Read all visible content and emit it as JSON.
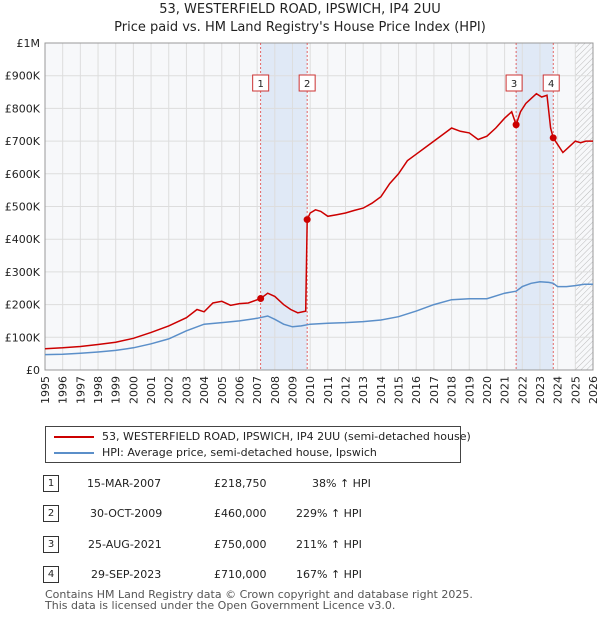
{
  "header": {
    "title": "53, WESTERFIELD ROAD, IPSWICH, IP4 2UU",
    "subtitle": "Price paid vs. HM Land Registry's House Price Index (HPI)"
  },
  "chart_data": {
    "type": "line",
    "title": "53, WESTERFIELD ROAD, IPSWICH, IP4 2UU",
    "subtitle": "Price paid vs. HM Land Registry's House Price Index (HPI)",
    "xlabel": "",
    "ylabel": "",
    "xlim": [
      1995,
      2026
    ],
    "ylim": [
      0,
      1000000
    ],
    "y_ticks": [
      {
        "value": 0,
        "label": "£0"
      },
      {
        "value": 100000,
        "label": "£100K"
      },
      {
        "value": 200000,
        "label": "£200K"
      },
      {
        "value": 300000,
        "label": "£300K"
      },
      {
        "value": 400000,
        "label": "£400K"
      },
      {
        "value": 500000,
        "label": "£500K"
      },
      {
        "value": 600000,
        "label": "£600K"
      },
      {
        "value": 700000,
        "label": "£700K"
      },
      {
        "value": 800000,
        "label": "£800K"
      },
      {
        "value": 900000,
        "label": "£900K"
      },
      {
        "value": 1000000,
        "label": "£1M"
      }
    ],
    "x_ticks": [
      "1995",
      "1996",
      "1997",
      "1998",
      "1999",
      "2000",
      "2001",
      "2002",
      "2003",
      "2004",
      "2005",
      "2006",
      "2007",
      "2008",
      "2009",
      "2010",
      "2011",
      "2012",
      "2013",
      "2014",
      "2015",
      "2016",
      "2017",
      "2018",
      "2019",
      "2020",
      "2021",
      "2022",
      "2023",
      "2024",
      "2025",
      "2026"
    ],
    "grid": true,
    "shaded_ranges": [
      [
        2007.2,
        2009.83
      ],
      [
        2021.65,
        2023.75
      ]
    ],
    "forecast_hatch_from": 2025.0,
    "series": [
      {
        "name": "53, WESTERFIELD ROAD, IPSWICH, IP4 2UU (semi-detached house)",
        "color": "#cc0000",
        "x": [
          1995.0,
          1996.0,
          1997.0,
          1998.0,
          1999.0,
          2000.0,
          2001.0,
          2002.0,
          2003.0,
          2003.6,
          2004.0,
          2004.5,
          2005.0,
          2005.5,
          2006.0,
          2006.5,
          2007.2,
          2007.6,
          2008.0,
          2008.5,
          2008.9,
          2009.3,
          2009.75,
          2009.83,
          2010.0,
          2010.3,
          2010.6,
          2011.0,
          2011.5,
          2012.0,
          2012.5,
          2013.0,
          2013.5,
          2014.0,
          2014.5,
          2015.0,
          2015.5,
          2016.0,
          2016.5,
          2017.0,
          2017.5,
          2018.0,
          2018.5,
          2019.0,
          2019.5,
          2020.0,
          2020.5,
          2021.0,
          2021.4,
          2021.65,
          2021.9,
          2022.2,
          2022.5,
          2022.8,
          2023.1,
          2023.4,
          2023.5,
          2023.6,
          2023.75,
          2024.0,
          2024.3,
          2024.6,
          2025.0,
          2025.3,
          2025.6,
          2026.0
        ],
        "values": [
          65000,
          68000,
          72000,
          78000,
          85000,
          97000,
          115000,
          135000,
          160000,
          185000,
          178000,
          205000,
          210000,
          198000,
          203000,
          205000,
          218750,
          235000,
          225000,
          200000,
          185000,
          175000,
          180000,
          460000,
          480000,
          490000,
          485000,
          470000,
          475000,
          480000,
          488000,
          495000,
          510000,
          530000,
          570000,
          600000,
          640000,
          660000,
          680000,
          700000,
          720000,
          740000,
          730000,
          725000,
          705000,
          715000,
          740000,
          770000,
          790000,
          750000,
          790000,
          815000,
          830000,
          845000,
          835000,
          840000,
          790000,
          740000,
          710000,
          690000,
          665000,
          680000,
          700000,
          695000,
          700000,
          700000
        ]
      },
      {
        "name": "HPI: Average price, semi-detached house, Ipswich",
        "color": "#5b8fc9",
        "x": [
          1995.0,
          1996.0,
          1997.0,
          1998.0,
          1999.0,
          2000.0,
          2001.0,
          2002.0,
          2003.0,
          2004.0,
          2005.0,
          2006.0,
          2007.0,
          2007.6,
          2008.0,
          2008.5,
          2009.0,
          2009.5,
          2010.0,
          2011.0,
          2012.0,
          2013.0,
          2014.0,
          2015.0,
          2016.0,
          2017.0,
          2018.0,
          2019.0,
          2020.0,
          2021.0,
          2021.65,
          2022.0,
          2022.5,
          2023.0,
          2023.5,
          2023.75,
          2024.0,
          2024.5,
          2025.0,
          2025.5,
          2026.0
        ],
        "values": [
          47000,
          48000,
          51000,
          55000,
          60000,
          68000,
          80000,
          95000,
          120000,
          140000,
          145000,
          150000,
          158000,
          165000,
          155000,
          140000,
          132000,
          135000,
          140000,
          143000,
          145000,
          148000,
          153000,
          163000,
          180000,
          200000,
          215000,
          218000,
          218000,
          235000,
          241000,
          255000,
          265000,
          270000,
          268000,
          265000,
          255000,
          255000,
          258000,
          262000,
          262000
        ]
      }
    ],
    "sales": [
      {
        "label": "1",
        "x": 2007.2,
        "value": 218750
      },
      {
        "label": "2",
        "x": 2009.83,
        "value": 460000
      },
      {
        "label": "3",
        "x": 2021.65,
        "value": 750000
      },
      {
        "label": "4",
        "x": 2023.75,
        "value": 710000
      }
    ],
    "legend_position": "bottom-left"
  },
  "legend": {
    "items": [
      {
        "label": "53, WESTERFIELD ROAD, IPSWICH, IP4 2UU (semi-detached house)",
        "color": "#cc0000"
      },
      {
        "label": "HPI: Average price, semi-detached house, Ipswich",
        "color": "#5b8fc9"
      }
    ]
  },
  "transactions": [
    {
      "num": "1",
      "date": "15-MAR-2007",
      "price": "£218,750",
      "hpi": "38% ↑ HPI"
    },
    {
      "num": "2",
      "date": "30-OCT-2009",
      "price": "£460,000",
      "hpi": "229% ↑ HPI"
    },
    {
      "num": "3",
      "date": "25-AUG-2021",
      "price": "£750,000",
      "hpi": "211% ↑ HPI"
    },
    {
      "num": "4",
      "date": "29-SEP-2023",
      "price": "£710,000",
      "hpi": "167% ↑ HPI"
    }
  ],
  "footer": {
    "line1": "Contains HM Land Registry data © Crown copyright and database right 2025.",
    "line2": "This data is licensed under the Open Government Licence v3.0."
  }
}
